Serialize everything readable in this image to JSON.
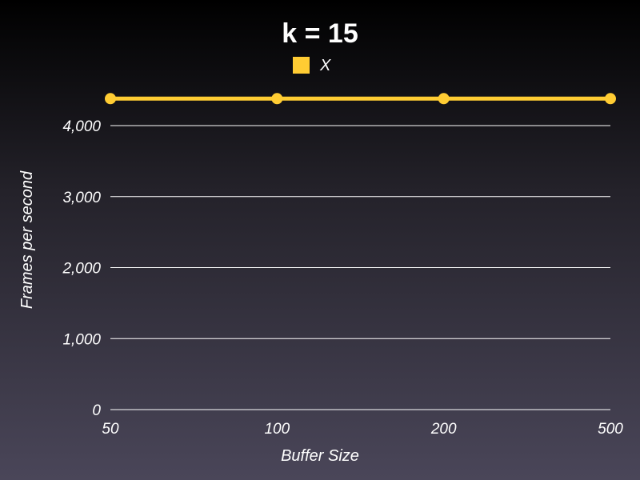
{
  "chart_data": {
    "type": "line",
    "title": "k = 15",
    "xlabel": "Buffer Size",
    "ylabel": "Frames per second",
    "categories": [
      "50",
      "100",
      "200",
      "500"
    ],
    "yticks": [
      "0",
      "1,000",
      "2,000",
      "3,000",
      "4,000"
    ],
    "ytick_values": [
      0,
      1000,
      2000,
      3000,
      4000
    ],
    "ylim": [
      0,
      4000
    ],
    "grid": true,
    "legend_position": "top",
    "series": [
      {
        "name": "X",
        "color": "#ffcc33",
        "values": [
          4380,
          4380,
          4380,
          4380
        ]
      }
    ]
  }
}
